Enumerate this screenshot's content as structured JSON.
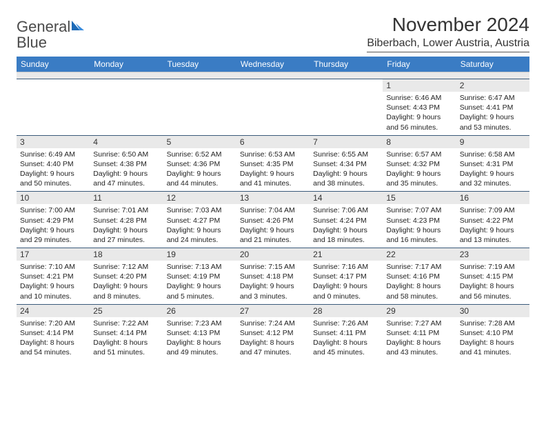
{
  "logo": {
    "text1": "General",
    "text2": "Blue"
  },
  "title": "November 2024",
  "location": "Biberbach, Lower Austria, Austria",
  "colors": {
    "header_bg": "#3a7cc4",
    "header_text": "#ffffff",
    "daynum_bg": "#e9e9e9",
    "week_border": "#3a5a7a",
    "logo_gray": "#4a4a4a",
    "logo_blue": "#2f7bd1"
  },
  "day_names": [
    "Sunday",
    "Monday",
    "Tuesday",
    "Wednesday",
    "Thursday",
    "Friday",
    "Saturday"
  ],
  "weeks": [
    [
      null,
      null,
      null,
      null,
      null,
      {
        "d": "1",
        "sr": "Sunrise: 6:46 AM",
        "ss": "Sunset: 4:43 PM",
        "dl1": "Daylight: 9 hours",
        "dl2": "and 56 minutes."
      },
      {
        "d": "2",
        "sr": "Sunrise: 6:47 AM",
        "ss": "Sunset: 4:41 PM",
        "dl1": "Daylight: 9 hours",
        "dl2": "and 53 minutes."
      }
    ],
    [
      {
        "d": "3",
        "sr": "Sunrise: 6:49 AM",
        "ss": "Sunset: 4:40 PM",
        "dl1": "Daylight: 9 hours",
        "dl2": "and 50 minutes."
      },
      {
        "d": "4",
        "sr": "Sunrise: 6:50 AM",
        "ss": "Sunset: 4:38 PM",
        "dl1": "Daylight: 9 hours",
        "dl2": "and 47 minutes."
      },
      {
        "d": "5",
        "sr": "Sunrise: 6:52 AM",
        "ss": "Sunset: 4:36 PM",
        "dl1": "Daylight: 9 hours",
        "dl2": "and 44 minutes."
      },
      {
        "d": "6",
        "sr": "Sunrise: 6:53 AM",
        "ss": "Sunset: 4:35 PM",
        "dl1": "Daylight: 9 hours",
        "dl2": "and 41 minutes."
      },
      {
        "d": "7",
        "sr": "Sunrise: 6:55 AM",
        "ss": "Sunset: 4:34 PM",
        "dl1": "Daylight: 9 hours",
        "dl2": "and 38 minutes."
      },
      {
        "d": "8",
        "sr": "Sunrise: 6:57 AM",
        "ss": "Sunset: 4:32 PM",
        "dl1": "Daylight: 9 hours",
        "dl2": "and 35 minutes."
      },
      {
        "d": "9",
        "sr": "Sunrise: 6:58 AM",
        "ss": "Sunset: 4:31 PM",
        "dl1": "Daylight: 9 hours",
        "dl2": "and 32 minutes."
      }
    ],
    [
      {
        "d": "10",
        "sr": "Sunrise: 7:00 AM",
        "ss": "Sunset: 4:29 PM",
        "dl1": "Daylight: 9 hours",
        "dl2": "and 29 minutes."
      },
      {
        "d": "11",
        "sr": "Sunrise: 7:01 AM",
        "ss": "Sunset: 4:28 PM",
        "dl1": "Daylight: 9 hours",
        "dl2": "and 27 minutes."
      },
      {
        "d": "12",
        "sr": "Sunrise: 7:03 AM",
        "ss": "Sunset: 4:27 PM",
        "dl1": "Daylight: 9 hours",
        "dl2": "and 24 minutes."
      },
      {
        "d": "13",
        "sr": "Sunrise: 7:04 AM",
        "ss": "Sunset: 4:26 PM",
        "dl1": "Daylight: 9 hours",
        "dl2": "and 21 minutes."
      },
      {
        "d": "14",
        "sr": "Sunrise: 7:06 AM",
        "ss": "Sunset: 4:24 PM",
        "dl1": "Daylight: 9 hours",
        "dl2": "and 18 minutes."
      },
      {
        "d": "15",
        "sr": "Sunrise: 7:07 AM",
        "ss": "Sunset: 4:23 PM",
        "dl1": "Daylight: 9 hours",
        "dl2": "and 16 minutes."
      },
      {
        "d": "16",
        "sr": "Sunrise: 7:09 AM",
        "ss": "Sunset: 4:22 PM",
        "dl1": "Daylight: 9 hours",
        "dl2": "and 13 minutes."
      }
    ],
    [
      {
        "d": "17",
        "sr": "Sunrise: 7:10 AM",
        "ss": "Sunset: 4:21 PM",
        "dl1": "Daylight: 9 hours",
        "dl2": "and 10 minutes."
      },
      {
        "d": "18",
        "sr": "Sunrise: 7:12 AM",
        "ss": "Sunset: 4:20 PM",
        "dl1": "Daylight: 9 hours",
        "dl2": "and 8 minutes."
      },
      {
        "d": "19",
        "sr": "Sunrise: 7:13 AM",
        "ss": "Sunset: 4:19 PM",
        "dl1": "Daylight: 9 hours",
        "dl2": "and 5 minutes."
      },
      {
        "d": "20",
        "sr": "Sunrise: 7:15 AM",
        "ss": "Sunset: 4:18 PM",
        "dl1": "Daylight: 9 hours",
        "dl2": "and 3 minutes."
      },
      {
        "d": "21",
        "sr": "Sunrise: 7:16 AM",
        "ss": "Sunset: 4:17 PM",
        "dl1": "Daylight: 9 hours",
        "dl2": "and 0 minutes."
      },
      {
        "d": "22",
        "sr": "Sunrise: 7:17 AM",
        "ss": "Sunset: 4:16 PM",
        "dl1": "Daylight: 8 hours",
        "dl2": "and 58 minutes."
      },
      {
        "d": "23",
        "sr": "Sunrise: 7:19 AM",
        "ss": "Sunset: 4:15 PM",
        "dl1": "Daylight: 8 hours",
        "dl2": "and 56 minutes."
      }
    ],
    [
      {
        "d": "24",
        "sr": "Sunrise: 7:20 AM",
        "ss": "Sunset: 4:14 PM",
        "dl1": "Daylight: 8 hours",
        "dl2": "and 54 minutes."
      },
      {
        "d": "25",
        "sr": "Sunrise: 7:22 AM",
        "ss": "Sunset: 4:14 PM",
        "dl1": "Daylight: 8 hours",
        "dl2": "and 51 minutes."
      },
      {
        "d": "26",
        "sr": "Sunrise: 7:23 AM",
        "ss": "Sunset: 4:13 PM",
        "dl1": "Daylight: 8 hours",
        "dl2": "and 49 minutes."
      },
      {
        "d": "27",
        "sr": "Sunrise: 7:24 AM",
        "ss": "Sunset: 4:12 PM",
        "dl1": "Daylight: 8 hours",
        "dl2": "and 47 minutes."
      },
      {
        "d": "28",
        "sr": "Sunrise: 7:26 AM",
        "ss": "Sunset: 4:11 PM",
        "dl1": "Daylight: 8 hours",
        "dl2": "and 45 minutes."
      },
      {
        "d": "29",
        "sr": "Sunrise: 7:27 AM",
        "ss": "Sunset: 4:11 PM",
        "dl1": "Daylight: 8 hours",
        "dl2": "and 43 minutes."
      },
      {
        "d": "30",
        "sr": "Sunrise: 7:28 AM",
        "ss": "Sunset: 4:10 PM",
        "dl1": "Daylight: 8 hours",
        "dl2": "and 41 minutes."
      }
    ]
  ]
}
